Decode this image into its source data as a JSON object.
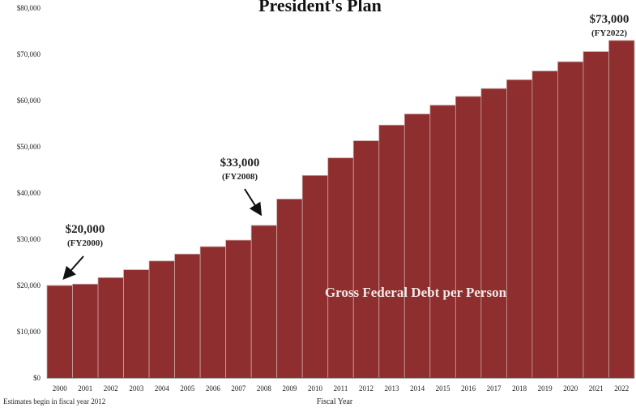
{
  "chart_data": {
    "type": "bar",
    "title": "President's Plan",
    "xlabel": "Fiscal Year",
    "ylabel": "",
    "ylim": [
      0,
      80000
    ],
    "yticks": [
      "$0",
      "$10,000",
      "$20,000",
      "$30,000",
      "$40,000",
      "$50,000",
      "$60,000",
      "$70,000",
      "$80,000"
    ],
    "categories": [
      "2000",
      "2001",
      "2002",
      "2003",
      "2004",
      "2005",
      "2006",
      "2007",
      "2008",
      "2009",
      "2010",
      "2011",
      "2012",
      "2013",
      "2014",
      "2015",
      "2016",
      "2017",
      "2018",
      "2019",
      "2020",
      "2021",
      "2022"
    ],
    "series": [
      {
        "name": "Gross Federal Debt per Person",
        "values": [
          20000,
          20300,
          21700,
          23400,
          25300,
          26800,
          28400,
          29800,
          33000,
          38700,
          43800,
          47600,
          51300,
          54700,
          57100,
          59000,
          60900,
          62600,
          64500,
          66400,
          68400,
          70600,
          73000
        ]
      }
    ],
    "bar_color": "#8f2e2e",
    "bar_edge_color": "#c9a3a3",
    "grid": false,
    "annotations": [
      {
        "value": "$20,000",
        "label": "(FY2000)",
        "category": "2000"
      },
      {
        "value": "$33,000",
        "label": "(FY2008)",
        "category": "2008"
      },
      {
        "value": "$73,000",
        "label": "(FY2022)",
        "category": "2022"
      }
    ],
    "inner_label": "Gross Federal Debt per Person",
    "footnote_1": "Estimates begin in fiscal year 2012"
  }
}
